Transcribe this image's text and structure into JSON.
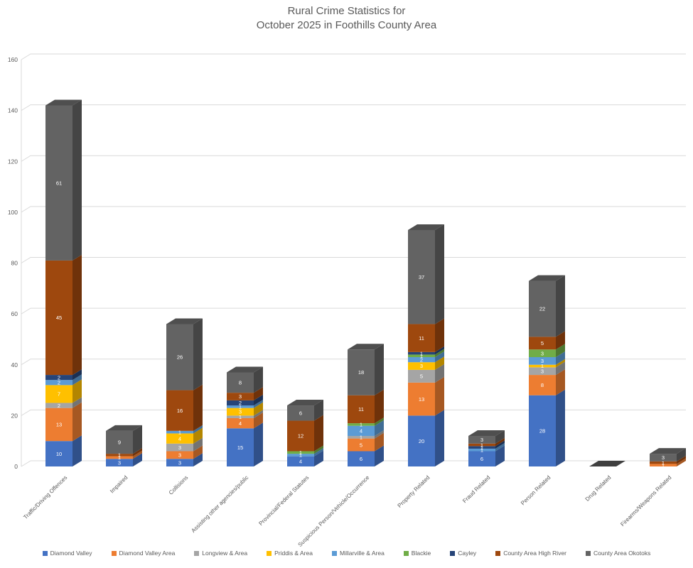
{
  "chart_data": {
    "type": "bar",
    "variant": "3d-stacked-column",
    "title_line1": "Rural Crime Statistics for",
    "title_line2": "October 2025 in Foothills County Area",
    "categories": [
      "Traffic/Driving Offences",
      "Impaired",
      "Collisions",
      "Assisting other agencies/public",
      "Provincial/Federal Statutes",
      "Suspicious Person/Vehicle/Occurrence",
      "Property Related",
      "Fraud Related",
      "Person Related",
      "Drug Related",
      "Firearms/Weapons Related"
    ],
    "series": [
      {
        "name": "Diamond Valley",
        "color": "#4472C4",
        "values": [
          10,
          3,
          3,
          15,
          4,
          6,
          20,
          6,
          28,
          0,
          0
        ]
      },
      {
        "name": "Diamond Valley Area",
        "color": "#ED7D31",
        "values": [
          13,
          1,
          3,
          4,
          0,
          5,
          13,
          0,
          8,
          0,
          1
        ]
      },
      {
        "name": "Longview & Area",
        "color": "#A5A5A5",
        "values": [
          2,
          0,
          3,
          1,
          0,
          1,
          5,
          0,
          3,
          0,
          0
        ]
      },
      {
        "name": "Priddis & Area",
        "color": "#FFC000",
        "values": [
          7,
          0,
          4,
          3,
          0,
          0,
          3,
          0,
          1,
          0,
          0
        ]
      },
      {
        "name": "Millarville & Area",
        "color": "#5B9BD5",
        "values": [
          2,
          0,
          1,
          1,
          1,
          4,
          2,
          1,
          3,
          0,
          0
        ]
      },
      {
        "name": "Blackie",
        "color": "#70AD47",
        "values": [
          0,
          0,
          0,
          0,
          1,
          1,
          1,
          0,
          3,
          0,
          0
        ]
      },
      {
        "name": "Cayley",
        "color": "#264478",
        "values": [
          2,
          0,
          0,
          2,
          0,
          0,
          1,
          1,
          0,
          0,
          0
        ]
      },
      {
        "name": "County Area High River",
        "color": "#9E480E",
        "values": [
          45,
          1,
          16,
          3,
          12,
          11,
          11,
          1,
          5,
          0,
          1
        ]
      },
      {
        "name": "County Area Okotoks",
        "color": "#636363",
        "values": [
          61,
          9,
          26,
          8,
          6,
          18,
          37,
          3,
          22,
          0,
          3
        ]
      }
    ],
    "totals": [
      142,
      14,
      56,
      37,
      24,
      46,
      93,
      12,
      73,
      0,
      5
    ],
    "y_axis": {
      "min": 0,
      "max": 160,
      "step": 20
    },
    "grid": true,
    "legend_position": "bottom",
    "colors": {
      "title_text": "#595959",
      "axis_text": "#595959",
      "gridline": "#d9d9d9",
      "segment_label": "#ffffff",
      "zero_bar_floor": "#3f3f3f"
    }
  }
}
